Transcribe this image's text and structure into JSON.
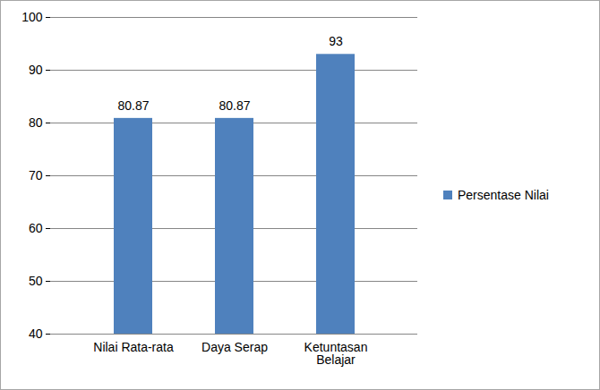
{
  "chart_data": {
    "type": "bar",
    "categories": [
      "Nilai Rata-rata",
      "Daya Serap",
      "Ketuntasan Belajar"
    ],
    "series": [
      {
        "name": "Persentase Nilai",
        "color": "#4f81bd",
        "values": [
          80.87,
          80.87,
          93
        ]
      }
    ],
    "ylim": [
      40,
      100
    ],
    "yticks": [
      40,
      50,
      60,
      70,
      80,
      90,
      100
    ],
    "grid": true,
    "legend": "right",
    "data_labels": true
  }
}
